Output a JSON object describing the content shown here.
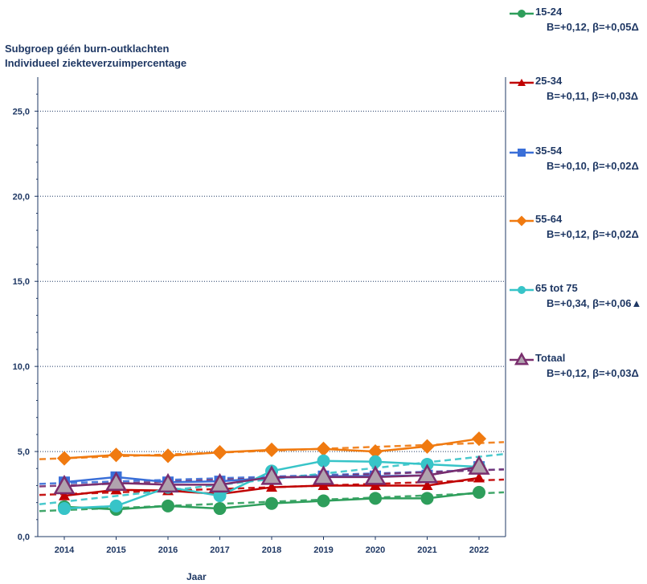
{
  "chart_data": {
    "type": "line",
    "title_line1": "Subgroep géén burn-outklachten",
    "title_line2": "Individueel ziekteverzuimpercentage",
    "xlabel": "Jaar",
    "ylabel": "",
    "categories": [
      "2014",
      "2015",
      "2016",
      "2017",
      "2018",
      "2019",
      "2020",
      "2021",
      "2022"
    ],
    "ylim": [
      0,
      27
    ],
    "yticks": [
      "0,0",
      "5,0",
      "10,0",
      "15,0",
      "20,0",
      "25,0"
    ],
    "ytick_values": [
      0,
      5,
      10,
      15,
      20,
      25
    ],
    "grid": "horizontal dotted",
    "legend_position": "right",
    "series": [
      {
        "name": "15-24",
        "stat": "B=+0,12, β=+0,05Δ",
        "color": "#2e9e5b",
        "marker": "circle",
        "values": [
          1.75,
          1.6,
          1.8,
          1.65,
          1.95,
          2.1,
          2.25,
          2.25,
          2.6
        ],
        "trend": [
          1.5,
          2.6
        ]
      },
      {
        "name": "25-34",
        "stat": "B=+0,11, β=+0,03Δ",
        "color": "#c00000",
        "marker": "triangle",
        "values": [
          2.4,
          2.75,
          2.7,
          2.5,
          2.9,
          3.0,
          3.0,
          3.0,
          3.45
        ],
        "trend": [
          2.45,
          3.35
        ]
      },
      {
        "name": "35-54",
        "stat": "B=+0,10, β=+0,02Δ",
        "color": "#3a6fd8",
        "marker": "square",
        "values": [
          3.2,
          3.5,
          3.2,
          3.25,
          3.45,
          3.55,
          3.55,
          3.6,
          4.1
        ],
        "trend": [
          3.1,
          3.95
        ]
      },
      {
        "name": "55-64",
        "stat": "B=+0,12, β=+0,02Δ",
        "color": "#f07a10",
        "marker": "diamond",
        "values": [
          4.6,
          4.8,
          4.75,
          4.95,
          5.1,
          5.15,
          5.0,
          5.3,
          5.75
        ],
        "trend": [
          4.55,
          5.55
        ]
      },
      {
        "name": "65 tot 75",
        "stat": "B=+0,34, β=+0,06▲",
        "color": "#37c4c8",
        "marker": "circle",
        "values": [
          1.65,
          1.8,
          2.9,
          2.4,
          3.85,
          4.45,
          4.4,
          4.25,
          4.1
        ],
        "trend": [
          1.9,
          4.85
        ]
      },
      {
        "name": "Totaal",
        "stat": "B=+0,12, β=+0,03Δ",
        "color": "#7a2e6e",
        "marker": "triangle-open",
        "values": [
          2.95,
          3.15,
          3.05,
          3.05,
          3.5,
          3.5,
          3.5,
          3.6,
          4.1
        ],
        "trend": [
          2.95,
          3.95
        ]
      }
    ]
  }
}
